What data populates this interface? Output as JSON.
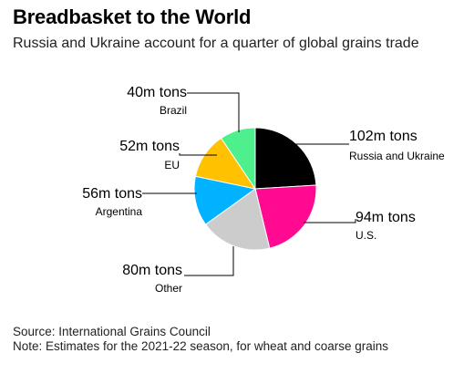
{
  "chart_data": {
    "type": "pie",
    "title": "Breadbasket to the World",
    "subtitle": "Russia and Ukraine account for a quarter of global grains trade",
    "slices": [
      {
        "label": "Russia and Ukraine",
        "value": 102,
        "value_label": "102m tons",
        "color": "#000000"
      },
      {
        "label": "U.S.",
        "value": 94,
        "value_label": "94m tons",
        "color": "#ff0a90"
      },
      {
        "label": "Other",
        "value": 80,
        "value_label": "80m tons",
        "color": "#cccccc"
      },
      {
        "label": "Argentina",
        "value": 56,
        "value_label": "56m tons",
        "color": "#00b2ff"
      },
      {
        "label": "EU",
        "value": 52,
        "value_label": "52m tons",
        "color": "#ffc100"
      },
      {
        "label": "Brazil",
        "value": 40,
        "value_label": "40m tons",
        "color": "#4df08d"
      }
    ],
    "units": "m tons"
  },
  "footer": {
    "source": "Source: International Grains Council",
    "note": "Note: Estimates for the 2021-22 season, for wheat and coarse grains"
  }
}
